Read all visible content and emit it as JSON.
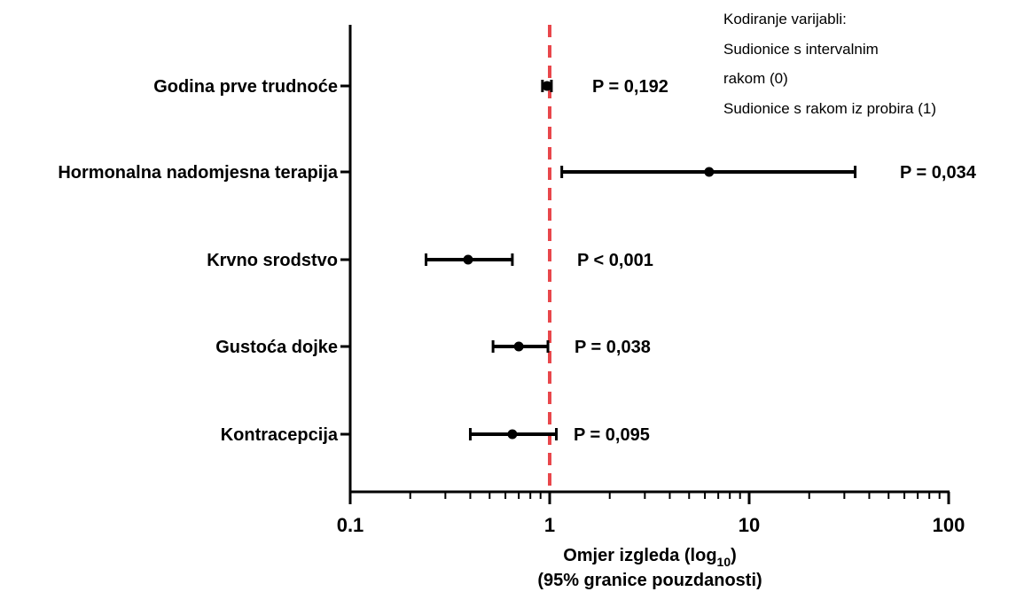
{
  "chart_data": {
    "type": "forest",
    "xscale": "log",
    "xlim": [
      0.1,
      100
    ],
    "x_ticks": [
      "0.1",
      "1",
      "10",
      "100"
    ],
    "reference_line": 1,
    "reference_color": "#e8474b",
    "xlabel_line1": "Omjer izgleda (log",
    "xlabel_sub": "10",
    "xlabel_close": ")",
    "xlabel_line2": "(95% granice pouzdanosti)",
    "legend_lines": [
      "Kodiranje varijabli:",
      "Sudionice s intervalnim",
      "rakom (0)",
      "Sudionice s rakom iz probira (1)"
    ],
    "rows": [
      {
        "label": "Godina prve trudnoće",
        "or": 0.97,
        "lo": 0.92,
        "hi": 1.02,
        "p": "P = 0,192"
      },
      {
        "label": "Hormonalna nadomjesna terapija",
        "or": 6.3,
        "lo": 1.15,
        "hi": 34,
        "p": "P = 0,034"
      },
      {
        "label": "Krvno srodstvo",
        "or": 0.39,
        "lo": 0.24,
        "hi": 0.65,
        "p": "P < 0,001"
      },
      {
        "label": "Gustoća dojke",
        "or": 0.7,
        "lo": 0.52,
        "hi": 0.98,
        "p": "P = 0,038"
      },
      {
        "label": "Kontracepcija",
        "or": 0.65,
        "lo": 0.4,
        "hi": 1.08,
        "p": "P = 0,095"
      }
    ]
  }
}
